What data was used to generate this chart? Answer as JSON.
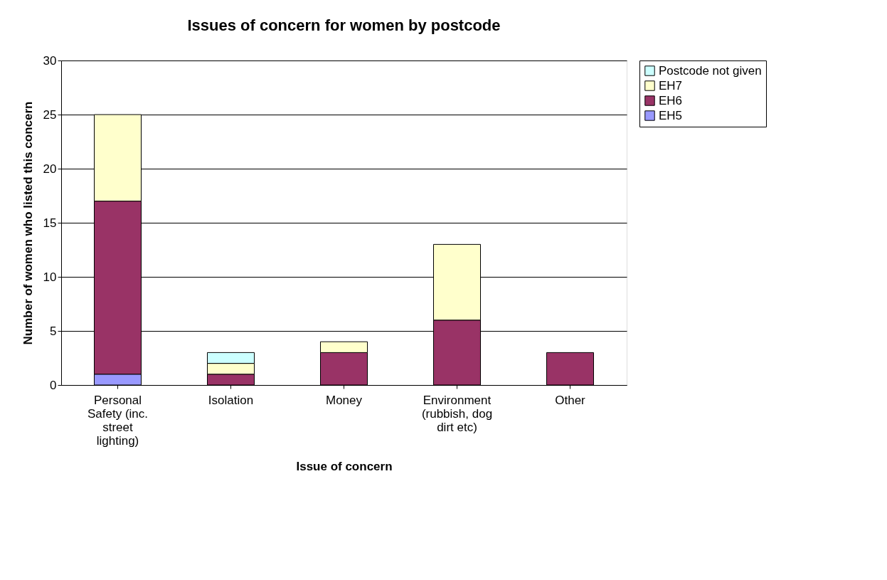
{
  "chart_data": {
    "type": "bar",
    "title": "Issues of concern for women by postcode",
    "xlabel": "Issue of concern",
    "ylabel": "Number of women who listed this concern",
    "categories": [
      "Personal Safety (inc. street lighting)",
      "Isolation",
      "Money",
      "Environment (rubbish, dog dirt etc)",
      "Other"
    ],
    "stacked": true,
    "ylim": [
      0,
      30
    ],
    "yticks": [
      0,
      5,
      10,
      15,
      20,
      25,
      30
    ],
    "grid": "y",
    "legend": "right",
    "series": [
      {
        "name": "EH5",
        "color": "#9999ff",
        "values": [
          1,
          0,
          0,
          0,
          0
        ]
      },
      {
        "name": "EH6",
        "color": "#993366",
        "values": [
          16,
          1,
          3,
          6,
          3
        ]
      },
      {
        "name": "EH7",
        "color": "#ffffcc",
        "values": [
          8,
          1,
          1,
          7,
          0
        ]
      },
      {
        "name": "Postcode not given",
        "color": "#ccffff",
        "values": [
          0,
          1,
          0,
          0,
          0
        ]
      }
    ]
  }
}
